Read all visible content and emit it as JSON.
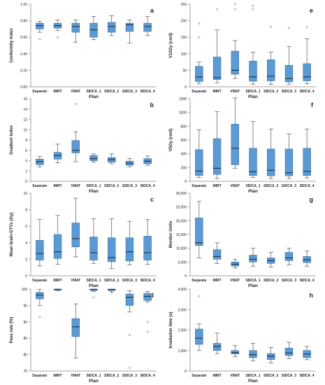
{
  "chart_data": [
    {
      "type": "box",
      "panel_letter": "a",
      "ylabel": "Conformity Index",
      "xlabel": "Plan",
      "ylim": [
        0,
        1.0
      ],
      "yticks": [
        0,
        0.2,
        0.4,
        0.6,
        0.8,
        1.0
      ],
      "ytick_labels": [
        "0.00",
        "0.20",
        "0.40",
        "0.60",
        "0.80",
        "1.00"
      ],
      "categories": [
        "Separate",
        "IMRT",
        "VMAT",
        "SIDCA_1",
        "SIDCA_2",
        "SIDCA_3",
        "SIDCA_4"
      ],
      "boxes": [
        {
          "min": 0.66,
          "q1": 0.7,
          "median": 0.74,
          "q3": 0.77,
          "max": 0.79,
          "outliers": [
            0.58
          ]
        },
        {
          "min": 0.68,
          "q1": 0.71,
          "median": 0.74,
          "q3": 0.77,
          "max": 0.81,
          "outliers": [
            0.6
          ]
        },
        {
          "min": 0.54,
          "q1": 0.66,
          "median": 0.73,
          "q3": 0.77,
          "max": 0.81,
          "outliers": []
        },
        {
          "min": 0.57,
          "q1": 0.6,
          "median": 0.69,
          "q3": 0.77,
          "max": 0.85,
          "outliers": []
        },
        {
          "min": 0.62,
          "q1": 0.66,
          "median": 0.73,
          "q3": 0.78,
          "max": 0.86,
          "outliers": []
        },
        {
          "min": 0.53,
          "q1": 0.67,
          "median": 0.75,
          "q3": 0.77,
          "max": 0.81,
          "outliers": []
        },
        {
          "min": 0.62,
          "q1": 0.67,
          "median": 0.73,
          "q3": 0.77,
          "max": 0.85,
          "outliers": []
        }
      ]
    },
    {
      "type": "box",
      "panel_letter": "b",
      "ylabel": "Gradient Index",
      "xlabel": "Plan",
      "ylim": [
        0,
        16
      ],
      "yticks": [
        0,
        2,
        4,
        6,
        8,
        10,
        12,
        14,
        16
      ],
      "ytick_labels": [
        "0",
        "2",
        "4",
        "6",
        "8",
        "10",
        "12",
        "14",
        "16"
      ],
      "categories": [
        "Separate",
        "IMRT",
        "VMAT",
        "SIDCA_1",
        "SIDCA_2",
        "SIDCA_3",
        "SIDCA_4"
      ],
      "boxes": [
        {
          "min": 2.8,
          "q1": 3.2,
          "median": 3.8,
          "q3": 4.3,
          "max": 4.8,
          "outliers": []
        },
        {
          "min": 3.6,
          "q1": 4.3,
          "median": 5.0,
          "q3": 5.6,
          "max": 7.2,
          "outliers": []
        },
        {
          "min": 3.8,
          "q1": 5.5,
          "median": 6.0,
          "q3": 7.9,
          "max": 9.6,
          "outliers": [
            15.0
          ]
        },
        {
          "min": 3.7,
          "q1": 4.0,
          "median": 4.4,
          "q3": 5.0,
          "max": 5.3,
          "outliers": []
        },
        {
          "min": 3.4,
          "q1": 3.7,
          "median": 4.2,
          "q3": 4.6,
          "max": 5.3,
          "outliers": []
        },
        {
          "min": 2.8,
          "q1": 3.1,
          "median": 3.5,
          "q3": 3.9,
          "max": 4.4,
          "outliers": []
        },
        {
          "min": 3.1,
          "q1": 3.4,
          "median": 3.9,
          "q3": 4.4,
          "max": 4.9,
          "outliers": []
        }
      ]
    },
    {
      "type": "box",
      "panel_letter": "c",
      "ylabel": "Mean brain-GTVs (Gy)",
      "xlabel": "Plan",
      "ylim": [
        0,
        10
      ],
      "yticks": [
        0,
        2,
        4,
        6,
        8,
        10
      ],
      "ytick_labels": [
        "0",
        "2",
        "4",
        "6",
        "8",
        "10"
      ],
      "categories": [
        "Separate",
        "IMRT",
        "VMAT",
        "SIDCA_1",
        "SIDCA_2",
        "SIDCA_3",
        "SIDCA_4"
      ],
      "boxes": [
        {
          "min": 1.2,
          "q1": 1.9,
          "median": 2.7,
          "q3": 4.3,
          "max": 6.8,
          "outliers": []
        },
        {
          "min": 1.4,
          "q1": 2.1,
          "median": 2.9,
          "q3": 5.0,
          "max": 7.3,
          "outliers": []
        },
        {
          "min": 2.3,
          "q1": 3.5,
          "median": 4.5,
          "q3": 6.4,
          "max": 9.4,
          "outliers": []
        },
        {
          "min": 1.5,
          "q1": 1.9,
          "median": 2.8,
          "q3": 4.7,
          "max": 6.9,
          "outliers": []
        },
        {
          "min": 0.9,
          "q1": 1.7,
          "median": 2.2,
          "q3": 4.6,
          "max": 6.9,
          "outliers": []
        },
        {
          "min": 1.3,
          "q1": 1.8,
          "median": 2.9,
          "q3": 4.6,
          "max": 6.6,
          "outliers": []
        },
        {
          "min": 1.4,
          "q1": 1.9,
          "median": 2.8,
          "q3": 4.8,
          "max": 6.8,
          "outliers": []
        }
      ]
    },
    {
      "type": "box",
      "panel_letter": "d",
      "ylabel": "Pass rate (%)",
      "xlabel": "Plan",
      "ylim": [
        75,
        100
      ],
      "yticks": [
        75,
        80,
        85,
        90,
        95,
        100
      ],
      "ytick_labels": [
        "75",
        "80",
        "85",
        "90",
        "95",
        "100"
      ],
      "categories": [
        "Separate",
        "IMRT",
        "VMAT",
        "SIDCA_1",
        "SIDCA_2",
        "SIDCA_3",
        "SIDCA_4"
      ],
      "boxes": [
        {
          "min": 95.0,
          "q1": 97.0,
          "median": 98.2,
          "q3": 99.0,
          "max": 99.9,
          "outliers": [
            91.5
          ]
        },
        {
          "min": 99.5,
          "q1": 99.7,
          "median": 99.9,
          "q3": 100.0,
          "max": 100.0,
          "outliers": []
        },
        {
          "min": 79.0,
          "q1": 85.5,
          "median": 88.5,
          "q3": 91.0,
          "max": 95.5,
          "outliers": []
        },
        {
          "min": 99.2,
          "q1": 99.6,
          "median": 99.8,
          "q3": 100.0,
          "max": 100.0,
          "outliers": [
            97.5
          ]
        },
        {
          "min": 99.2,
          "q1": 99.6,
          "median": 99.8,
          "q3": 100.0,
          "max": 100.0,
          "outliers": [
            98.8
          ]
        },
        {
          "min": 93.0,
          "q1": 95.0,
          "median": 97.5,
          "q3": 98.5,
          "max": 99.5,
          "outliers": [
            86.0,
            76.0
          ]
        },
        {
          "min": 96.0,
          "q1": 96.5,
          "median": 97.8,
          "q3": 98.7,
          "max": 99.3,
          "outliers": [
            90.0,
            87.0
          ]
        }
      ]
    },
    {
      "type": "box",
      "panel_letter": "e",
      "ylabel": "V12Gy (cm3)",
      "xlabel": "Plan",
      "ylim": [
        0,
        250
      ],
      "yticks": [
        0,
        50,
        100,
        150,
        200,
        250
      ],
      "ytick_labels": [
        "0",
        "50",
        "100",
        "150",
        "200",
        "250"
      ],
      "categories": [
        "Separate",
        "IMRT",
        "VMAT",
        "SIDCA_1",
        "SIDCA_2",
        "SIDCA_3",
        "SIDCA_4"
      ],
      "boxes": [
        {
          "min": 9,
          "q1": 16,
          "median": 30,
          "q3": 62,
          "max": 75,
          "outliers": [
            150,
            192
          ]
        },
        {
          "min": 12,
          "q1": 22,
          "median": 28,
          "q3": 90,
          "max": 172,
          "outliers": [
            235
          ]
        },
        {
          "min": 25,
          "q1": 38,
          "median": 50,
          "q3": 108,
          "max": 140,
          "outliers": [
            235,
            250
          ]
        },
        {
          "min": 8,
          "q1": 17,
          "median": 30,
          "q3": 78,
          "max": 105,
          "outliers": [
            235,
            245
          ]
        },
        {
          "min": 7,
          "q1": 18,
          "median": 32,
          "q3": 82,
          "max": 105,
          "outliers": [
            182
          ]
        },
        {
          "min": 8,
          "q1": 15,
          "median": 25,
          "q3": 65,
          "max": 122,
          "outliers": [
            178
          ]
        },
        {
          "min": 9,
          "q1": 18,
          "median": 30,
          "q3": 70,
          "max": 145,
          "outliers": [
            180
          ]
        }
      ]
    },
    {
      "type": "box",
      "panel_letter": "f",
      "ylabel": "V5Gy (cm3)",
      "xlabel": "Plan",
      "ylim": [
        0,
        1200
      ],
      "yticks": [
        0,
        200,
        400,
        600,
        800,
        1000,
        1200
      ],
      "ytick_labels": [
        "0",
        "200",
        "400",
        "600",
        "800",
        "1000",
        "1200"
      ],
      "categories": [
        "Separate",
        "IMRT",
        "VMAT",
        "SIDCA_1",
        "SIDCA_2",
        "SIDCA_3",
        "SIDCA_4"
      ],
      "boxes": [
        {
          "min": 55,
          "q1": 85,
          "median": 150,
          "q3": 460,
          "max": 750,
          "outliers": []
        },
        {
          "min": 40,
          "q1": 100,
          "median": 190,
          "q3": 620,
          "max": 1010,
          "outliers": []
        },
        {
          "min": 190,
          "q1": 240,
          "median": 480,
          "q3": 830,
          "max": 1210,
          "outliers": []
        },
        {
          "min": 55,
          "q1": 85,
          "median": 140,
          "q3": 480,
          "max": 870,
          "outliers": []
        },
        {
          "min": 40,
          "q1": 80,
          "median": 160,
          "q3": 470,
          "max": 760,
          "outliers": []
        },
        {
          "min": 40,
          "q1": 80,
          "median": 125,
          "q3": 470,
          "max": 690,
          "outliers": []
        },
        {
          "min": 50,
          "q1": 85,
          "median": 145,
          "q3": 480,
          "max": 760,
          "outliers": []
        }
      ]
    },
    {
      "type": "box",
      "panel_letter": "g",
      "ylabel": "Monitor Units",
      "xlabel": "Plan",
      "ylim": [
        0,
        30000
      ],
      "yticks": [
        0,
        5000,
        10000,
        15000,
        20000,
        25000,
        30000
      ],
      "ytick_labels": [
        "0",
        "5,000",
        "10,000",
        "15,000",
        "20,000",
        "25,000",
        "30,000"
      ],
      "categories": [
        "Separate",
        "IMRT",
        "VMAT",
        "SIDCA_1",
        "SIDCA_2",
        "SIDCA_3",
        "SIDCA_4"
      ],
      "boxes": [
        {
          "min": 6500,
          "q1": 11000,
          "median": 12000,
          "q3": 21000,
          "max": 27000,
          "outliers": []
        },
        {
          "min": 4500,
          "q1": 6000,
          "median": 7000,
          "q3": 9500,
          "max": 12000,
          "outliers": []
        },
        {
          "min": 2800,
          "q1": 3500,
          "median": 4200,
          "q3": 5000,
          "max": 6000,
          "outliers": []
        },
        {
          "min": 3500,
          "q1": 5000,
          "median": 6000,
          "q3": 7500,
          "max": 10000,
          "outliers": []
        },
        {
          "min": 3200,
          "q1": 4500,
          "median": 5500,
          "q3": 6500,
          "max": 8500,
          "outliers": []
        },
        {
          "min": 4000,
          "q1": 5500,
          "median": 6500,
          "q3": 8500,
          "max": 10000,
          "outliers": []
        },
        {
          "min": 3500,
          "q1": 4800,
          "median": 5800,
          "q3": 7000,
          "max": 9000,
          "outliers": []
        }
      ]
    },
    {
      "type": "box",
      "panel_letter": "h",
      "ylabel": "Irradiation time (s)",
      "xlabel": "Plan",
      "ylim": [
        0,
        4000
      ],
      "yticks": [
        0,
        1000,
        2000,
        3000,
        4000
      ],
      "ytick_labels": [
        "0",
        "1,000",
        "2,000",
        "3,000",
        "4,000"
      ],
      "categories": [
        "Separate",
        "IMRT",
        "VMAT",
        "SIDCA_1",
        "SIDCA_2",
        "SIDCA_3",
        "SIDCA_4"
      ],
      "boxes": [
        {
          "min": 1000,
          "q1": 1300,
          "median": 1600,
          "q3": 2050,
          "max": 2300,
          "outliers": [
            3650
          ]
        },
        {
          "min": 850,
          "q1": 1000,
          "median": 1200,
          "q3": 1350,
          "max": 1850,
          "outliers": []
        },
        {
          "min": 700,
          "q1": 830,
          "median": 900,
          "q3": 1000,
          "max": 1250,
          "outliers": []
        },
        {
          "min": 500,
          "q1": 650,
          "median": 800,
          "q3": 1000,
          "max": 1350,
          "outliers": []
        },
        {
          "min": 400,
          "q1": 560,
          "median": 720,
          "q3": 850,
          "max": 1150,
          "outliers": []
        },
        {
          "min": 600,
          "q1": 750,
          "median": 880,
          "q3": 1120,
          "max": 1400,
          "outliers": []
        },
        {
          "min": 550,
          "q1": 650,
          "median": 830,
          "q3": 1000,
          "max": 1200,
          "outliers": []
        }
      ]
    }
  ],
  "colors": {
    "box_fill": "#5b9bd5",
    "box_stroke": "#3f6f9f",
    "axis": "#a6a6a6",
    "text": "#222222",
    "outlier": "#999999"
  }
}
